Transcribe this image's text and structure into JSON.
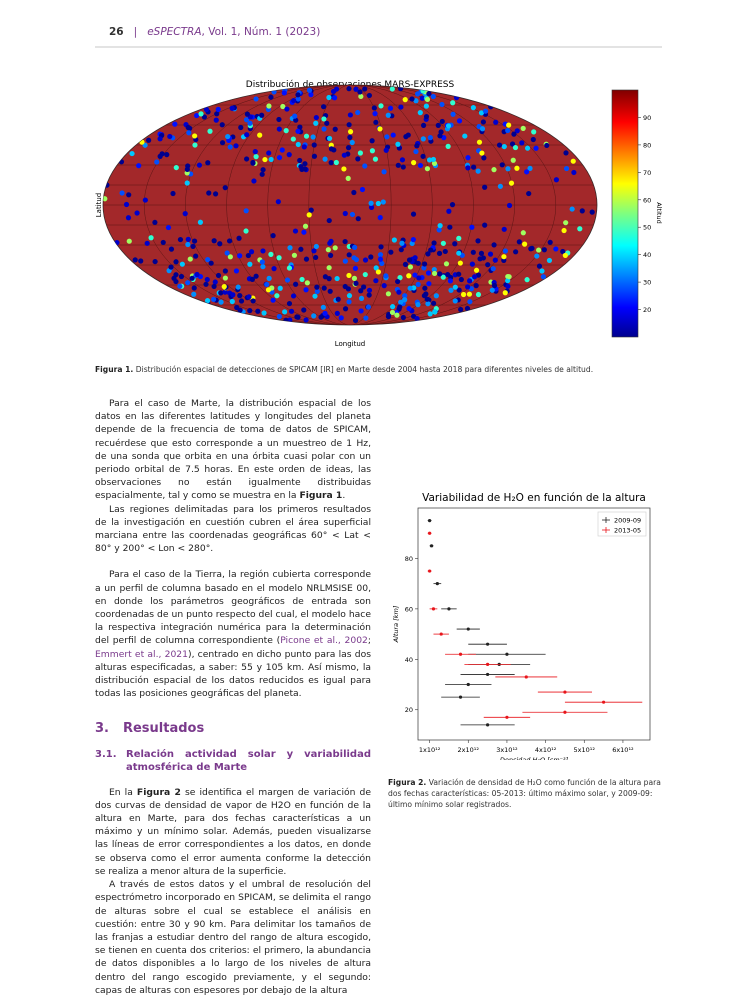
{
  "header": {
    "page": "26",
    "separator": "|",
    "journal": "eSPECTRA",
    "issue": ", Vol. 1, Núm. 1 (2023)"
  },
  "figure1": {
    "title": "Distribución de observaciones MARS-EXPRESS",
    "ylabel": "Latitud",
    "xlabel": "Longitud",
    "colorbar_label": "Altitud",
    "clim": [
      10,
      100
    ],
    "cticks": [
      20,
      30,
      40,
      50,
      60,
      70,
      80,
      90
    ],
    "map_color": "#a3282a"
  },
  "caption1": [
    "Figura 1.",
    "Distribución espacial de detecciones de SPICAM [IR] en Marte desde 2004 hasta 2018 para diferentes niveles de altitud."
  ],
  "paragraphs": [
    [
      "Para el caso de Marte, la distribución espacial de los datos en las diferentes latitudes y longitudes del planeta depende de la frecuencia de toma de datos de SPICAM, recuérdese que esto corresponde a un muestreo de 1 Hz, de una sonda que orbita en una órbita cuasi polar con un periodo orbital de 7.5 horas. En este orden de ideas, las observaciones no están igualmente distribuidas espacialmente, tal y como se muestra en la ",
      "Figura 1",
      "."
    ],
    [
      "Las regiones delimitadas para los primeros resultados de la investigación en cuestión cubren el área superficial marciana entre las coordenadas geográficas 60° < Lat < 80° y 200° < Lon < 280°."
    ],
    [
      "Para el caso de la Tierra, la región cubierta corresponde a un perfil de columna basado en el modelo NRLMSISE 00, en donde los parámetros geográficos de entrada son coordenadas de un punto respecto del cual, el modelo hace la respectiva integración numérica para la determinación del perfil de columna correspondiente (",
      "Picone et al., 2002",
      "; ",
      "Emmert et al., 2021",
      "), centrado en dicho punto para las dos alturas especificadas, a saber: 55 y 105 km. Así mismo, la distribución espacial de los datos reducidos es igual para todas las posiciones geográficas del planeta."
    ],
    [
      "En la ",
      "Figura 2",
      " se identifica el margen de variación de dos curvas de densidad de vapor de H2O en función de la altura en Marte, para dos fechas características a un máximo y un mínimo solar. Además, pueden visualizarse las líneas de error correspondientes a los datos, en donde se observa como el error aumenta conforme la detección se realiza a menor altura de la superficie."
    ],
    [
      "A través de estos datos y el umbral de resolución del espectrómetro incorporado en SPICAM, se delimita el rango de alturas sobre el cual se establece el análisis en cuestión: entre 30 y 90 km. Para delimitar los tamaños de las franjas a estudiar dentro del rango de altura escogido, se tienen en cuenta dos criterios: el primero, la abundancia de datos disponibles a lo largo de los niveles de altura dentro del rango escogido previamente, y el segundo: capas de alturas con espesores por debajo de la altura"
    ]
  ],
  "section": {
    "number": "3.",
    "title": "Resultados"
  },
  "subsection": {
    "number": "3.1.",
    "title": "Relación actividad solar y variabilidad atmosférica de Marte"
  },
  "figure2": {
    "type": "scatter",
    "title": "Variabilidad de H₂O en función de la altura",
    "xlabel": "Densidad H₂O [cm⁻³]",
    "ylabel": "Altura [km]",
    "xlim": [
      700000000000,
      6700000000000
    ],
    "ylim": [
      8,
      100
    ],
    "xticks": [
      {
        "value": 1000000000000,
        "label": "1x10¹²"
      },
      {
        "value": 2000000000000,
        "label": "2x10¹²"
      },
      {
        "value": 3000000000000,
        "label": "3x10¹²"
      },
      {
        "value": 4000000000000,
        "label": "4x10¹²"
      },
      {
        "value": 5000000000000,
        "label": "5x10¹²"
      },
      {
        "value": 6000000000000,
        "label": "6x10¹²"
      }
    ],
    "yticks": [
      20,
      40,
      60,
      80
    ],
    "legend": "upper right",
    "series": [
      {
        "name": "2009-09",
        "color": "#222222",
        "x": [
          1000000000000,
          1050000000000,
          1200000000000,
          1500000000000,
          2000000000000,
          2500000000000,
          3000000000000,
          2800000000000,
          2500000000000,
          2000000000000,
          1800000000000,
          2500000000000
        ],
        "y": [
          95,
          85,
          70,
          60,
          52,
          46,
          42,
          38,
          34,
          30,
          25,
          14
        ],
        "xerr": [
          50000000000,
          50000000000,
          100000000000,
          200000000000,
          300000000000,
          500000000000,
          1000000000000,
          800000000000,
          700000000000,
          600000000000,
          500000000000,
          700000000000
        ]
      },
      {
        "name": "2013-05",
        "color": "#e8151b",
        "x": [
          1000000000000,
          1000000000000,
          1100000000000,
          1300000000000,
          1800000000000,
          2500000000000,
          3500000000000,
          4500000000000,
          5500000000000,
          4500000000000,
          3000000000000
        ],
        "y": [
          90,
          75,
          60,
          50,
          42,
          38,
          33,
          27,
          23,
          19,
          17
        ],
        "xerr": [
          50000000000,
          50000000000,
          100000000000,
          200000000000,
          400000000000,
          600000000000,
          800000000000,
          700000000000,
          1000000000000,
          1100000000000,
          600000000000
        ]
      }
    ]
  },
  "caption2": [
    "Figura 2.",
    "Variación de densidad de H₂O como función de la altura para dos fechas características: 05-2013: último máximo solar, y 2009-09: último mínimo solar registrados."
  ]
}
